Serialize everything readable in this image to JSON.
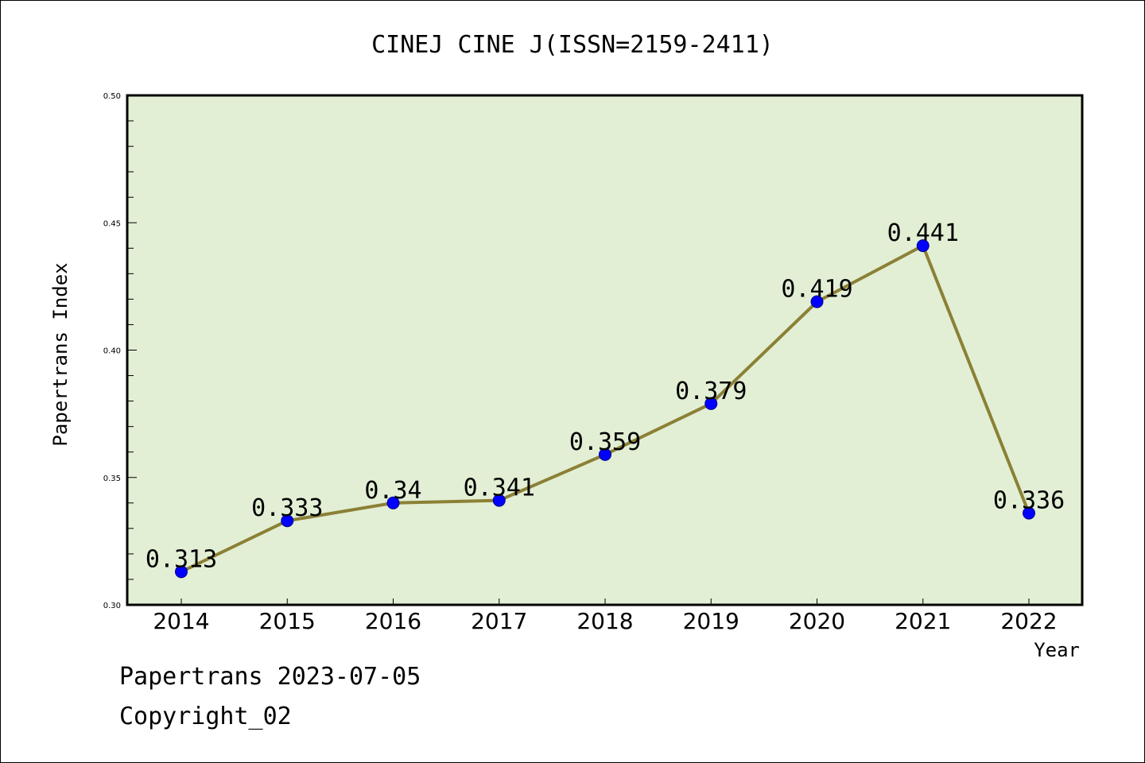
{
  "chart_data": {
    "type": "line",
    "title": "CINEJ CINE J(ISSN=2159-2411)",
    "xlabel": "Year",
    "ylabel": "Papertrans Index",
    "categories": [
      "2014",
      "2015",
      "2016",
      "2017",
      "2018",
      "2019",
      "2020",
      "2021",
      "2022"
    ],
    "series": [
      {
        "values": [
          0.313,
          0.333,
          0.34,
          0.341,
          0.359,
          0.379,
          0.419,
          0.441,
          0.336
        ],
        "labels": [
          "0.313",
          "0.333",
          "0.34",
          "0.341",
          "0.359",
          "0.379",
          "0.419",
          "0.441",
          "0.336"
        ]
      }
    ],
    "ylim": [
      0.3,
      0.5
    ],
    "yticks": [
      "0.30",
      "0.35",
      "0.40",
      "0.45",
      "0.50"
    ],
    "grid": false,
    "colors": {
      "plot_background": "#e2efd5",
      "line": "#8b8035",
      "marker": "#0000ff"
    }
  },
  "footer": {
    "line1": "Papertrans 2023-07-05",
    "line2": "Copyright_02"
  }
}
